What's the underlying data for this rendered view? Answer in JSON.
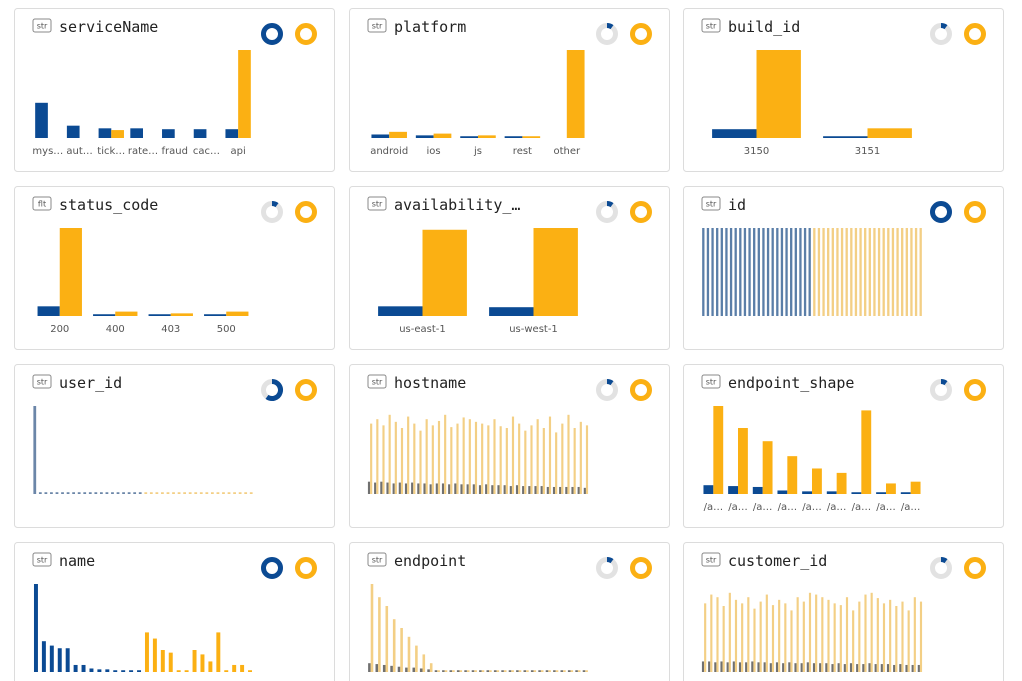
{
  "cards": [
    {
      "tag": "str",
      "title": "serviceName",
      "ring": 1.0,
      "chart": {
        "mode": "grouped",
        "ylim": [
          0,
          100
        ],
        "categories": [
          "mys…",
          "aut…",
          "tick…",
          "rate…",
          "fraud",
          "cac…",
          "api"
        ],
        "series": [
          {
            "color": "#0b4a93",
            "values": [
              40,
              14,
              11,
              11,
              10,
              10,
              10
            ]
          },
          {
            "color": "#fbb013",
            "values": [
              0,
              0,
              9,
              0,
              0,
              0,
              100
            ]
          }
        ]
      }
    },
    {
      "tag": "str",
      "title": "platform",
      "ring": 0.1,
      "chart": {
        "mode": "grouped",
        "ylim": [
          0,
          100
        ],
        "categories": [
          "android",
          "ios",
          "js",
          "rest",
          "other"
        ],
        "series": [
          {
            "color": "#0b4a93",
            "values": [
              4,
              3,
              2,
              2,
              0
            ]
          },
          {
            "color": "#fbb013",
            "values": [
              7,
              5,
              3,
              2,
              100
            ]
          }
        ]
      }
    },
    {
      "tag": "str",
      "title": "build_id",
      "ring": 0.1,
      "chart": {
        "mode": "grouped",
        "ylim": [
          0,
          100
        ],
        "categories": [
          "3150",
          "3151"
        ],
        "series": [
          {
            "color": "#0b4a93",
            "values": [
              10,
              2
            ]
          },
          {
            "color": "#fbb013",
            "values": [
              100,
              11
            ]
          }
        ]
      }
    },
    {
      "tag": "flt",
      "title": "status_code",
      "ring": 0.1,
      "chart": {
        "mode": "grouped",
        "ylim": [
          0,
          100
        ],
        "categories": [
          "200",
          "400",
          "403",
          "500"
        ],
        "series": [
          {
            "color": "#0b4a93",
            "values": [
              11,
              2,
              2,
              2
            ]
          },
          {
            "color": "#fbb013",
            "values": [
              100,
              5,
              3,
              5
            ]
          }
        ]
      }
    },
    {
      "tag": "str",
      "title": "availability_…",
      "ring": 0.1,
      "chart": {
        "mode": "grouped",
        "ylim": [
          0,
          100
        ],
        "categories": [
          "us-east-1",
          "us-west-1"
        ],
        "series": [
          {
            "color": "#0b4a93",
            "values": [
              11,
              10
            ]
          },
          {
            "color": "#fbb013",
            "values": [
              98,
              100
            ]
          }
        ]
      }
    },
    {
      "tag": "str",
      "title": "id",
      "ring": 1.0,
      "chart": {
        "mode": "sequential",
        "ylim": [
          0,
          100
        ],
        "series": [
          {
            "color": "#5a7ea8",
            "values": [
              100,
              100,
              100,
              100,
              100,
              100,
              100,
              100,
              100,
              100,
              100,
              100,
              100,
              100,
              100,
              100,
              100,
              100,
              100,
              100,
              100,
              100,
              100,
              100
            ]
          },
          {
            "color": "#f3cf85",
            "values": [
              100,
              100,
              100,
              100,
              100,
              100,
              100,
              100,
              100,
              100,
              100,
              100,
              100,
              100,
              100,
              100,
              100,
              100,
              100,
              100,
              100,
              100,
              100,
              100
            ]
          }
        ]
      }
    },
    {
      "tag": "str",
      "title": "user_id",
      "ring": 0.6,
      "chart": {
        "mode": "sequential",
        "ylim": [
          0,
          100
        ],
        "series": [
          {
            "color": "#6b86a8",
            "values": [
              100,
              2,
              2,
              2,
              2,
              2,
              2,
              2,
              2,
              2,
              2,
              2,
              2,
              2,
              2,
              2,
              2,
              2,
              2,
              2
            ]
          },
          {
            "color": "#f3cf85",
            "values": [
              2,
              2,
              2,
              2,
              2,
              2,
              2,
              2,
              2,
              2,
              2,
              2,
              2,
              2,
              2,
              2,
              2,
              2,
              2,
              2
            ]
          }
        ]
      }
    },
    {
      "tag": "str",
      "title": "hostname",
      "ring": 0.1,
      "chart": {
        "mode": "paired",
        "ylim": [
          0,
          100
        ],
        "series": [
          {
            "color": "#707070",
            "values": [
              14,
              13,
              14,
              13,
              12,
              13,
              12,
              13,
              12,
              12,
              11,
              12,
              12,
              11,
              12,
              11,
              11,
              11,
              10,
              11,
              10,
              10,
              10,
              9,
              10,
              9,
              9,
              9,
              9,
              8,
              8,
              8,
              8,
              8,
              8,
              7
            ]
          },
          {
            "color": "#f3cf85",
            "values": [
              80,
              85,
              78,
              90,
              82,
              75,
              88,
              80,
              72,
              85,
              78,
              83,
              90,
              76,
              80,
              87,
              85,
              82,
              80,
              78,
              85,
              77,
              75,
              88,
              80,
              72,
              78,
              85,
              75,
              88,
              70,
              80,
              90,
              75,
              82,
              78
            ]
          }
        ]
      }
    },
    {
      "tag": "str",
      "title": "endpoint_shape",
      "ring": 0.1,
      "chart": {
        "mode": "grouped",
        "ylim": [
          0,
          100
        ],
        "categories": [
          "/a…",
          "/a…",
          "/a…",
          "/a…",
          "/a…",
          "/a…",
          "/a…",
          "/a…",
          "/a…"
        ],
        "series": [
          {
            "color": "#0b4a93",
            "values": [
              10,
              9,
              8,
              4,
              3,
              3,
              2,
              2,
              2
            ]
          },
          {
            "color": "#fbb013",
            "values": [
              100,
              75,
              60,
              43,
              29,
              24,
              95,
              12,
              14
            ]
          }
        ]
      }
    },
    {
      "tag": "str",
      "title": "name",
      "ring": 1.0,
      "chart": {
        "mode": "sequential",
        "ylim": [
          0,
          100
        ],
        "series": [
          {
            "color": "#0b4a93",
            "values": [
              100,
              35,
              30,
              27,
              27,
              8,
              8,
              4,
              3,
              3,
              2,
              2,
              2,
              2
            ]
          },
          {
            "color": "#fbb013",
            "values": [
              45,
              38,
              25,
              22,
              2,
              2,
              25,
              20,
              12,
              45,
              2,
              8,
              8,
              2
            ]
          }
        ]
      }
    },
    {
      "tag": "str",
      "title": "endpoint",
      "ring": 0.1,
      "chart": {
        "mode": "paired",
        "ylim": [
          0,
          100
        ],
        "series": [
          {
            "color": "#707070",
            "values": [
              10,
              9,
              8,
              7,
              6,
              5,
              5,
              4,
              3,
              2,
              2,
              2,
              2,
              2,
              2,
              2,
              2,
              2,
              2,
              2,
              2,
              2,
              2,
              2,
              2,
              2,
              2,
              2,
              2,
              2
            ]
          },
          {
            "color": "#f3cf85",
            "values": [
              100,
              85,
              75,
              60,
              50,
              40,
              30,
              20,
              10,
              2,
              2,
              2,
              2,
              2,
              2,
              2,
              2,
              2,
              2,
              2,
              2,
              2,
              2,
              2,
              2,
              2,
              2,
              2,
              2,
              2
            ]
          }
        ]
      }
    },
    {
      "tag": "str",
      "title": "customer_id",
      "ring": 0.1,
      "chart": {
        "mode": "paired",
        "ylim": [
          0,
          100
        ],
        "series": [
          {
            "color": "#707070",
            "values": [
              12,
              12,
              11,
              12,
              11,
              12,
              11,
              11,
              12,
              11,
              11,
              10,
              11,
              10,
              11,
              10,
              10,
              11,
              10,
              10,
              10,
              9,
              10,
              9,
              10,
              9,
              9,
              10,
              9,
              9,
              9,
              8,
              9,
              8,
              8,
              8
            ]
          },
          {
            "color": "#f3cf85",
            "values": [
              78,
              88,
              85,
              75,
              90,
              82,
              78,
              85,
              72,
              80,
              88,
              76,
              82,
              78,
              70,
              85,
              80,
              90,
              88,
              85,
              82,
              78,
              76,
              85,
              70,
              80,
              88,
              90,
              84,
              78,
              82,
              75,
              80,
              70,
              85,
              80
            ]
          }
        ]
      }
    }
  ]
}
